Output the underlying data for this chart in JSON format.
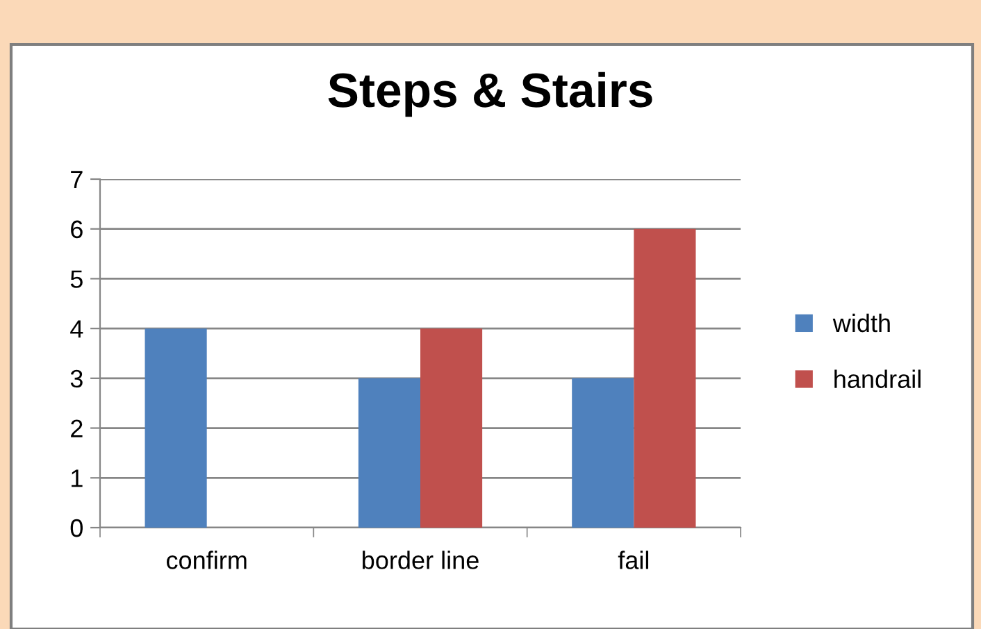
{
  "chart_data": {
    "type": "bar",
    "title": "Steps & Stairs",
    "categories": [
      "confirm",
      "border line",
      "fail"
    ],
    "series": [
      {
        "name": "width",
        "color": "#4f81bd",
        "values": [
          4,
          3,
          3
        ]
      },
      {
        "name": "handrail",
        "color": "#c0504d",
        "values": [
          null,
          4,
          6
        ]
      }
    ],
    "ylim": [
      0,
      7
    ],
    "yticks": [
      0,
      1,
      2,
      3,
      4,
      5,
      6,
      7
    ],
    "grid": "y",
    "legend": "right"
  }
}
